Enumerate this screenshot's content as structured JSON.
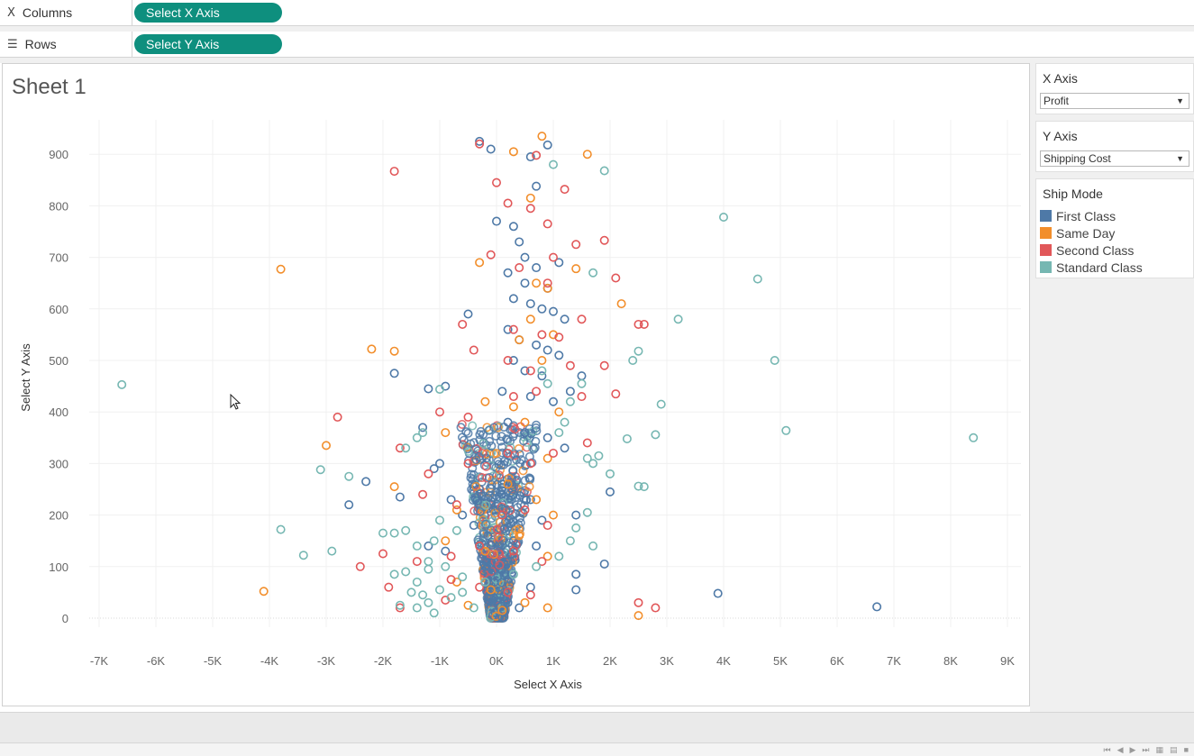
{
  "shelves": {
    "columns": {
      "label": "Columns",
      "icon": "columns-icon",
      "pill": "Select X Axis"
    },
    "rows": {
      "label": "Rows",
      "icon": "rows-icon",
      "pill": "Select Y Axis"
    }
  },
  "sheet": {
    "title": "Sheet 1"
  },
  "parameters": {
    "x_axis": {
      "title": "X Axis",
      "value": "Profit"
    },
    "y_axis": {
      "title": "Y Axis",
      "value": "Shipping Cost"
    }
  },
  "legend": {
    "title": "Ship Mode",
    "items": [
      {
        "label": "First Class",
        "color": "#4e79a7"
      },
      {
        "label": "Same Day",
        "color": "#f28e2b"
      },
      {
        "label": "Second Class",
        "color": "#e15759"
      },
      {
        "label": "Standard Class",
        "color": "#76b7b2"
      }
    ]
  },
  "chart_data": {
    "type": "scatter",
    "title": "Sheet 1",
    "xlabel": "Select X Axis",
    "ylabel": "Select Y Axis",
    "xlim": [
      -7500,
      9200
    ],
    "ylim": [
      -30,
      960
    ],
    "x_ticks": [
      -7000,
      -6000,
      -5000,
      -4000,
      -3000,
      -2000,
      -1000,
      0,
      1000,
      2000,
      3000,
      4000,
      5000,
      6000,
      7000,
      8000,
      9000
    ],
    "x_tick_labels": [
      "-7K",
      "-6K",
      "-5K",
      "-4K",
      "-3K",
      "-2K",
      "-1K",
      "0K",
      "1K",
      "2K",
      "3K",
      "4K",
      "5K",
      "6K",
      "7K",
      "8K",
      "9K"
    ],
    "y_ticks": [
      0,
      100,
      200,
      300,
      400,
      500,
      600,
      700,
      800,
      900
    ],
    "y_tick_labels": [
      "0",
      "100",
      "200",
      "300",
      "400",
      "500",
      "600",
      "700",
      "800",
      "900"
    ],
    "grid": true,
    "legend_position": "right",
    "marker": "open-circle",
    "series": [
      {
        "name": "First Class",
        "color": "#4e79a7",
        "points": [
          [
            -300,
            925
          ],
          [
            -100,
            910
          ],
          [
            900,
            918
          ],
          [
            600,
            895
          ],
          [
            700,
            838
          ],
          [
            0,
            770
          ],
          [
            300,
            760
          ],
          [
            400,
            730
          ],
          [
            500,
            700
          ],
          [
            700,
            680
          ],
          [
            1100,
            690
          ],
          [
            200,
            670
          ],
          [
            500,
            650
          ],
          [
            900,
            640
          ],
          [
            300,
            620
          ],
          [
            600,
            610
          ],
          [
            800,
            600
          ],
          [
            1000,
            595
          ],
          [
            -500,
            590
          ],
          [
            1200,
            580
          ],
          [
            200,
            560
          ],
          [
            400,
            540
          ],
          [
            700,
            530
          ],
          [
            900,
            520
          ],
          [
            1100,
            510
          ],
          [
            -1800,
            475
          ],
          [
            300,
            500
          ],
          [
            500,
            480
          ],
          [
            800,
            470
          ],
          [
            1500,
            470
          ],
          [
            -900,
            450
          ],
          [
            -1200,
            445
          ],
          [
            100,
            440
          ],
          [
            600,
            430
          ],
          [
            1000,
            420
          ],
          [
            1300,
            440
          ],
          [
            -1300,
            370
          ],
          [
            -1000,
            300
          ],
          [
            -1100,
            290
          ],
          [
            200,
            380
          ],
          [
            500,
            360
          ],
          [
            900,
            350
          ],
          [
            1200,
            330
          ],
          [
            -2300,
            265
          ],
          [
            -2600,
            220
          ],
          [
            -1700,
            235
          ],
          [
            -800,
            230
          ],
          [
            100,
            260
          ],
          [
            300,
            240
          ],
          [
            600,
            230
          ],
          [
            2000,
            245
          ],
          [
            -600,
            200
          ],
          [
            -400,
            180
          ],
          [
            800,
            190
          ],
          [
            1400,
            200
          ],
          [
            -1200,
            140
          ],
          [
            -900,
            130
          ],
          [
            300,
            150
          ],
          [
            700,
            140
          ],
          [
            1400,
            85
          ],
          [
            1900,
            105
          ],
          [
            -200,
            100
          ],
          [
            200,
            110
          ],
          [
            600,
            60
          ],
          [
            1400,
            55
          ],
          [
            3900,
            48
          ],
          [
            6700,
            22
          ],
          [
            -100,
            40
          ],
          [
            200,
            30
          ],
          [
            400,
            20
          ]
        ]
      },
      {
        "name": "Same Day",
        "color": "#f28e2b",
        "points": [
          [
            800,
            935
          ],
          [
            300,
            905
          ],
          [
            1600,
            900
          ],
          [
            600,
            815
          ],
          [
            -3800,
            677
          ],
          [
            1400,
            678
          ],
          [
            -300,
            690
          ],
          [
            2200,
            610
          ],
          [
            700,
            650
          ],
          [
            900,
            640
          ],
          [
            -2200,
            522
          ],
          [
            -1800,
            518
          ],
          [
            400,
            540
          ],
          [
            600,
            580
          ],
          [
            800,
            500
          ],
          [
            1000,
            550
          ],
          [
            -200,
            420
          ],
          [
            300,
            410
          ],
          [
            -3000,
            335
          ],
          [
            -900,
            360
          ],
          [
            500,
            380
          ],
          [
            900,
            310
          ],
          [
            1100,
            400
          ],
          [
            -1800,
            255
          ],
          [
            -700,
            210
          ],
          [
            200,
            260
          ],
          [
            700,
            230
          ],
          [
            1000,
            200
          ],
          [
            -900,
            150
          ],
          [
            -200,
            130
          ],
          [
            400,
            160
          ],
          [
            900,
            120
          ],
          [
            -4100,
            52
          ],
          [
            -700,
            70
          ],
          [
            -100,
            55
          ],
          [
            500,
            30
          ],
          [
            900,
            20
          ],
          [
            2500,
            5
          ],
          [
            -500,
            25
          ],
          [
            100,
            15
          ]
        ]
      },
      {
        "name": "Second Class",
        "color": "#e15759",
        "points": [
          [
            -1800,
            867
          ],
          [
            -300,
            920
          ],
          [
            700,
            898
          ],
          [
            0,
            845
          ],
          [
            1200,
            832
          ],
          [
            200,
            805
          ],
          [
            600,
            795
          ],
          [
            900,
            765
          ],
          [
            1900,
            733
          ],
          [
            1400,
            725
          ],
          [
            -100,
            705
          ],
          [
            400,
            680
          ],
          [
            900,
            650
          ],
          [
            2100,
            660
          ],
          [
            1000,
            700
          ],
          [
            -600,
            570
          ],
          [
            300,
            560
          ],
          [
            800,
            550
          ],
          [
            1100,
            545
          ],
          [
            1500,
            580
          ],
          [
            2600,
            570
          ],
          [
            2500,
            570
          ],
          [
            -400,
            520
          ],
          [
            200,
            500
          ],
          [
            600,
            480
          ],
          [
            1300,
            490
          ],
          [
            1900,
            490
          ],
          [
            -1000,
            400
          ],
          [
            -500,
            390
          ],
          [
            300,
            430
          ],
          [
            700,
            440
          ],
          [
            1500,
            430
          ],
          [
            2100,
            435
          ],
          [
            -2800,
            390
          ],
          [
            -1700,
            330
          ],
          [
            -1200,
            280
          ],
          [
            -500,
            300
          ],
          [
            200,
            320
          ],
          [
            600,
            300
          ],
          [
            1000,
            320
          ],
          [
            1600,
            340
          ],
          [
            -1300,
            240
          ],
          [
            -700,
            220
          ],
          [
            100,
            200
          ],
          [
            500,
            210
          ],
          [
            900,
            180
          ],
          [
            -2000,
            125
          ],
          [
            -1400,
            110
          ],
          [
            -800,
            120
          ],
          [
            -300,
            140
          ],
          [
            300,
            130
          ],
          [
            800,
            110
          ],
          [
            -2400,
            100
          ],
          [
            -1900,
            60
          ],
          [
            -800,
            75
          ],
          [
            -300,
            60
          ],
          [
            200,
            50
          ],
          [
            600,
            45
          ],
          [
            2500,
            30
          ],
          [
            2800,
            20
          ],
          [
            -1700,
            20
          ],
          [
            -900,
            35
          ]
        ]
      },
      {
        "name": "Standard Class",
        "color": "#76b7b2",
        "points": [
          [
            1900,
            868
          ],
          [
            1000,
            880
          ],
          [
            4000,
            778
          ],
          [
            4600,
            658
          ],
          [
            1700,
            670
          ],
          [
            3200,
            580
          ],
          [
            2400,
            500
          ],
          [
            4900,
            500
          ],
          [
            2500,
            518
          ],
          [
            -6600,
            453
          ],
          [
            2900,
            415
          ],
          [
            5100,
            364
          ],
          [
            8400,
            350
          ],
          [
            2800,
            356
          ],
          [
            2300,
            348
          ],
          [
            -3100,
            288
          ],
          [
            -2600,
            275
          ],
          [
            2000,
            280
          ],
          [
            2500,
            256
          ],
          [
            2600,
            255
          ],
          [
            -3800,
            172
          ],
          [
            -3400,
            122
          ],
          [
            -2900,
            130
          ],
          [
            -1600,
            170
          ],
          [
            -1800,
            165
          ],
          [
            -2000,
            165
          ],
          [
            -1400,
            140
          ],
          [
            -1100,
            150
          ],
          [
            -1000,
            190
          ],
          [
            -700,
            170
          ],
          [
            -1200,
            110
          ],
          [
            -900,
            100
          ],
          [
            -600,
            80
          ],
          [
            -1800,
            85
          ],
          [
            -1600,
            90
          ],
          [
            -1400,
            70
          ],
          [
            -1500,
            50
          ],
          [
            -1200,
            30
          ],
          [
            -1400,
            20
          ],
          [
            -1700,
            25
          ],
          [
            -1300,
            45
          ],
          [
            -1000,
            55
          ],
          [
            -600,
            50
          ],
          [
            -200,
            70
          ],
          [
            300,
            85
          ],
          [
            700,
            100
          ],
          [
            1100,
            120
          ],
          [
            1300,
            150
          ],
          [
            1700,
            140
          ],
          [
            1600,
            205
          ],
          [
            1400,
            175
          ],
          [
            1700,
            300
          ],
          [
            1600,
            310
          ],
          [
            1800,
            315
          ],
          [
            1500,
            455
          ],
          [
            1300,
            420
          ],
          [
            1200,
            380
          ],
          [
            1100,
            360
          ],
          [
            800,
            480
          ],
          [
            -1000,
            444
          ],
          [
            900,
            455
          ],
          [
            -1600,
            330
          ],
          [
            -1400,
            350
          ],
          [
            -1300,
            360
          ],
          [
            -1200,
            95
          ],
          [
            -1100,
            10
          ],
          [
            -800,
            40
          ],
          [
            -400,
            20
          ]
        ]
      }
    ]
  }
}
